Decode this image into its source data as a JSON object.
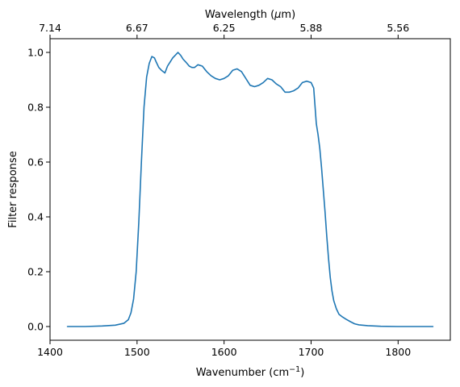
{
  "chart_data": {
    "type": "line",
    "xlabel_main": "Wavenumber (cm",
    "xlabel_sup": "−1",
    "xlabel_tail": ")",
    "top_xlabel_main": "Wavelength (",
    "top_xlabel_mu": "μ",
    "top_xlabel_tail": "m)",
    "ylabel": "Filter response",
    "xlim": [
      1400,
      1860
    ],
    "ylim": [
      -0.05,
      1.05
    ],
    "x_ticks": [
      {
        "value": 1400,
        "label": "1400"
      },
      {
        "value": 1500,
        "label": "1500"
      },
      {
        "value": 1600,
        "label": "1600"
      },
      {
        "value": 1700,
        "label": "1700"
      },
      {
        "value": 1800,
        "label": "1800"
      }
    ],
    "y_ticks": [
      {
        "value": 0.0,
        "label": "0.0"
      },
      {
        "value": 0.2,
        "label": "0.2"
      },
      {
        "value": 0.4,
        "label": "0.4"
      },
      {
        "value": 0.6,
        "label": "0.6"
      },
      {
        "value": 0.8,
        "label": "0.8"
      },
      {
        "value": 1.0,
        "label": "1.0"
      }
    ],
    "top_ticks": [
      {
        "value": 1400,
        "label": "7.14"
      },
      {
        "value": 1500,
        "label": "6.67"
      },
      {
        "value": 1600,
        "label": "6.25"
      },
      {
        "value": 1700,
        "label": "5.88"
      },
      {
        "value": 1800,
        "label": "5.56"
      }
    ],
    "color": "#1f77b4",
    "grid": false,
    "series": [
      {
        "x": [
          1420,
          1440,
          1460,
          1475,
          1485,
          1490,
          1493,
          1496,
          1499,
          1502,
          1505,
          1508,
          1511,
          1514,
          1517,
          1520,
          1522,
          1525,
          1528,
          1532,
          1535,
          1538,
          1541,
          1544,
          1547,
          1550,
          1553,
          1556,
          1560,
          1563,
          1566,
          1570,
          1575,
          1580,
          1585,
          1590,
          1595,
          1600,
          1605,
          1610,
          1615,
          1620,
          1625,
          1630,
          1635,
          1640,
          1645,
          1650,
          1655,
          1660,
          1665,
          1670,
          1675,
          1680,
          1685,
          1690,
          1695,
          1700,
          1703,
          1706,
          1707,
          1708,
          1710,
          1712,
          1714,
          1716,
          1718,
          1720,
          1722,
          1724,
          1726,
          1729,
          1732,
          1736,
          1740,
          1745,
          1750,
          1755,
          1765,
          1780,
          1800,
          1820,
          1840
        ],
        "y": [
          0.0,
          0.0,
          0.002,
          0.005,
          0.012,
          0.025,
          0.05,
          0.1,
          0.2,
          0.38,
          0.6,
          0.8,
          0.91,
          0.96,
          0.985,
          0.98,
          0.965,
          0.945,
          0.935,
          0.925,
          0.95,
          0.965,
          0.98,
          0.99,
          1.0,
          0.99,
          0.975,
          0.965,
          0.95,
          0.945,
          0.945,
          0.955,
          0.95,
          0.93,
          0.915,
          0.905,
          0.9,
          0.905,
          0.915,
          0.935,
          0.94,
          0.93,
          0.905,
          0.88,
          0.875,
          0.88,
          0.89,
          0.905,
          0.9,
          0.885,
          0.875,
          0.855,
          0.855,
          0.86,
          0.87,
          0.89,
          0.895,
          0.89,
          0.87,
          0.74,
          0.72,
          0.7,
          0.65,
          0.58,
          0.5,
          0.42,
          0.33,
          0.25,
          0.18,
          0.13,
          0.095,
          0.065,
          0.045,
          0.035,
          0.027,
          0.018,
          0.01,
          0.006,
          0.003,
          0.001,
          0.0,
          0.0,
          0.0
        ]
      }
    ]
  }
}
